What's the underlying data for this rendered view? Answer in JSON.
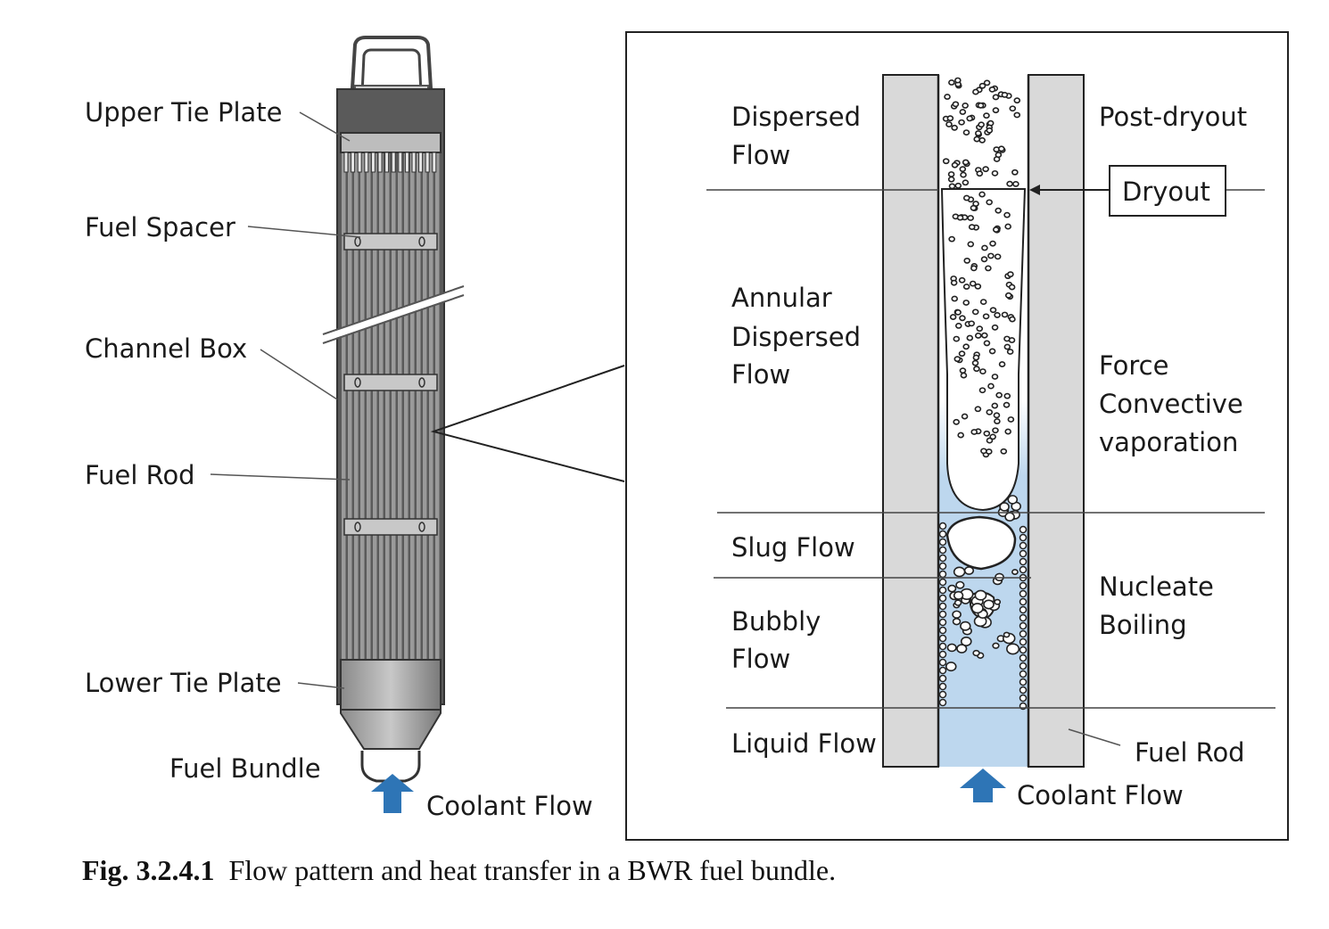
{
  "bundle": {
    "labels": {
      "upper_tie_plate": "Upper Tie Plate",
      "fuel_spacer": "Fuel Spacer",
      "channel_box": "Channel Box",
      "fuel_rod": "Fuel Rod",
      "lower_tie_plate": "Lower Tie Plate",
      "fuel_bundle": "Fuel Bundle",
      "coolant_flow": "Coolant Flow"
    }
  },
  "detail": {
    "regimes": {
      "dispersed_1": "Dispersed",
      "dispersed_2": "Flow",
      "annular_1": "Annular",
      "annular_2": "Dispersed",
      "annular_3": "Flow",
      "slug": "Slug Flow",
      "bubbly_1": "Bubbly",
      "bubbly_2": "Flow",
      "liquid": "Liquid Flow"
    },
    "heat_transfer": {
      "post_dryout": "Post-dryout",
      "dryout": "Dryout",
      "forced_1": "Force",
      "forced_2": "Convective",
      "forced_3": "vaporation",
      "nucleate_1": "Nucleate",
      "nucleate_2": "Boiling"
    },
    "fuel_rod": "Fuel Rod",
    "coolant_flow": "Coolant Flow"
  },
  "colors": {
    "rod_gray": "#d9d9d9",
    "coolant_blue": "#bdd7ee",
    "arrow_blue": "#2e75b6",
    "bundle_dark": "#5a5a5a"
  },
  "caption": {
    "number": "Fig. 3.2.4.1",
    "text": "Flow pattern and heat transfer in a BWR fuel bundle."
  }
}
